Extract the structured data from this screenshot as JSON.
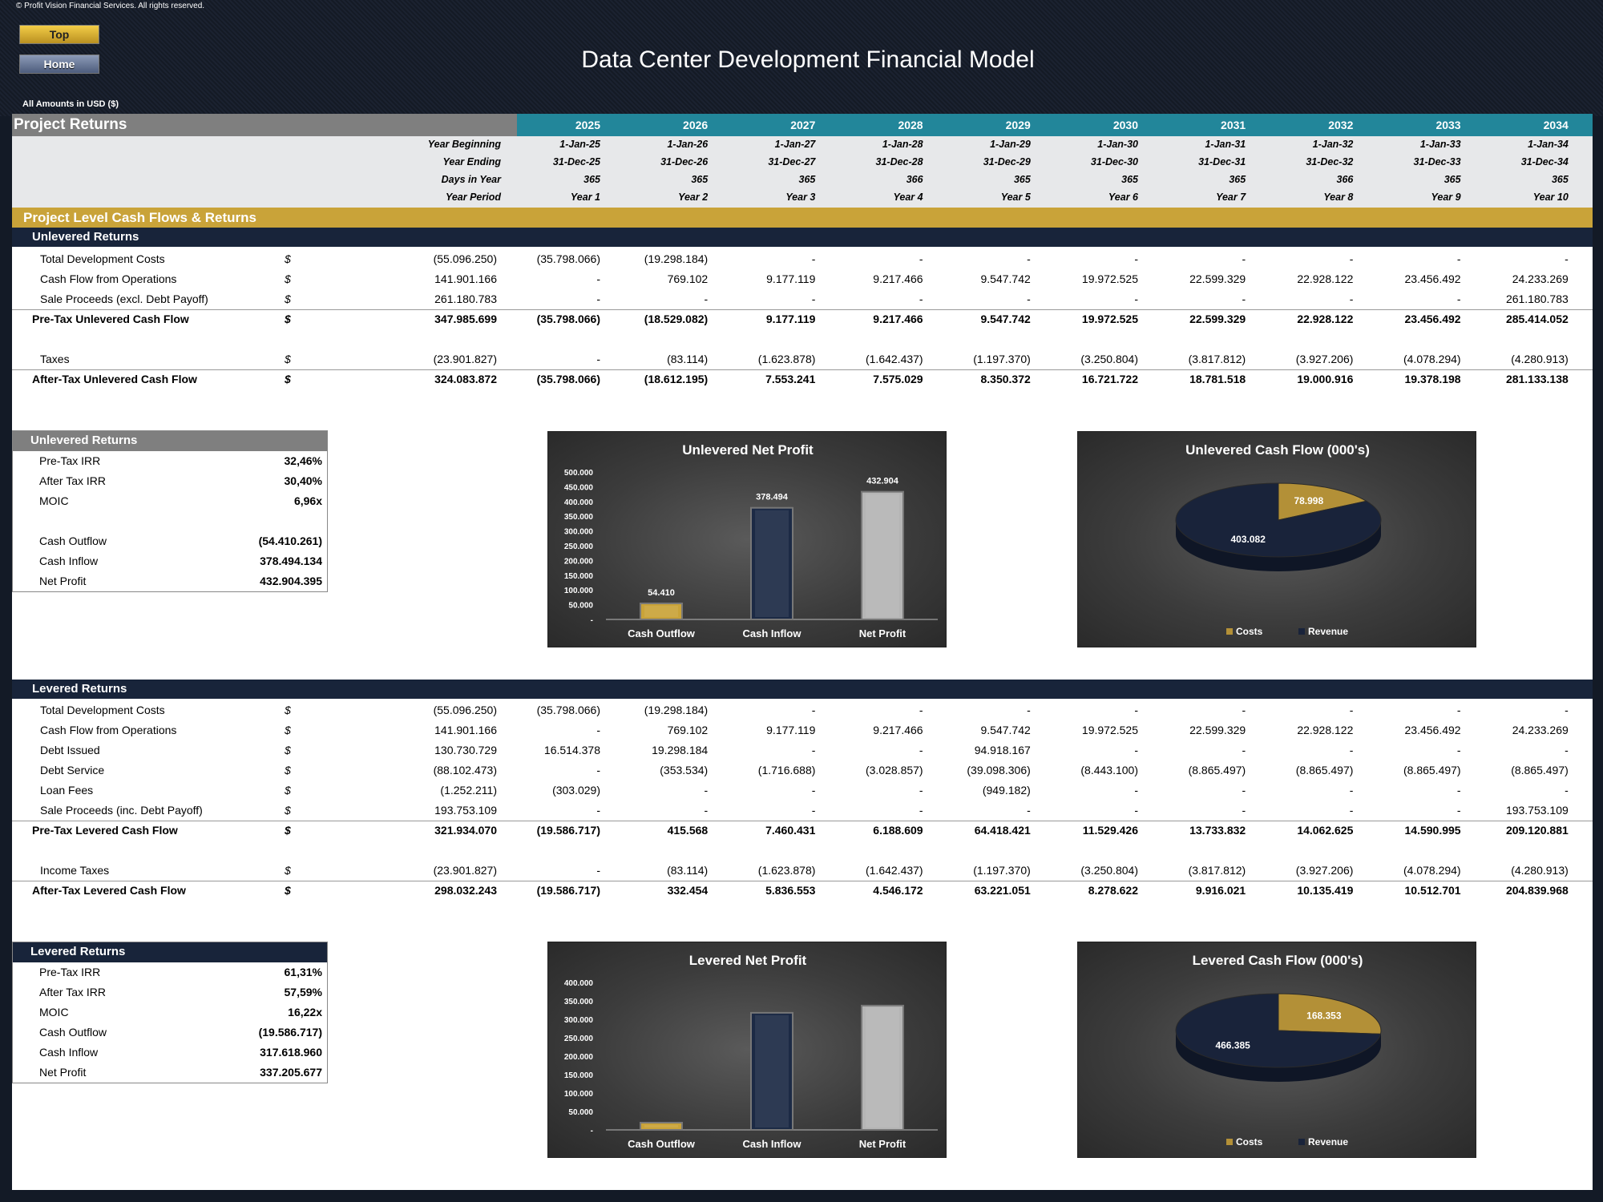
{
  "copyright": "© Profit Vision Financial Services. All rights reserved.",
  "nav": {
    "top_label": "Top",
    "home_label": "Home"
  },
  "title": "Data Center Development Financial Model",
  "amounts_note": "All Amounts in  USD ($)",
  "section_title": "Project Returns",
  "years": [
    "2025",
    "2026",
    "2027",
    "2028",
    "2029",
    "2030",
    "2031",
    "2032",
    "2033",
    "2034"
  ],
  "header_rows": [
    {
      "label": "Year Beginning",
      "values": [
        "1-Jan-25",
        "1-Jan-26",
        "1-Jan-27",
        "1-Jan-28",
        "1-Jan-29",
        "1-Jan-30",
        "1-Jan-31",
        "1-Jan-32",
        "1-Jan-33",
        "1-Jan-34"
      ]
    },
    {
      "label": "Year Ending",
      "values": [
        "31-Dec-25",
        "31-Dec-26",
        "31-Dec-27",
        "31-Dec-28",
        "31-Dec-29",
        "31-Dec-30",
        "31-Dec-31",
        "31-Dec-32",
        "31-Dec-33",
        "31-Dec-34"
      ]
    },
    {
      "label": "Days in Year",
      "values": [
        "365",
        "365",
        "365",
        "366",
        "365",
        "365",
        "365",
        "366",
        "365",
        "365"
      ]
    },
    {
      "label": "Year Period",
      "values": [
        "Year 1",
        "Year 2",
        "Year 3",
        "Year 4",
        "Year 5",
        "Year 6",
        "Year 7",
        "Year 8",
        "Year 9",
        "Year 10"
      ]
    }
  ],
  "cashflow_section": "Project Level Cash Flows & Returns",
  "unlevered": {
    "title": "Unlevered Returns",
    "rows": [
      {
        "label": "Total Development Costs",
        "unit": "$",
        "total": "(55.096.250)",
        "values": [
          "(35.798.066)",
          "(19.298.184)",
          "-",
          "-",
          "-",
          "-",
          "-",
          "-",
          "-",
          "-"
        ]
      },
      {
        "label": "Cash Flow from Operations",
        "unit": "$",
        "total": "141.901.166",
        "values": [
          "-",
          "769.102",
          "9.177.119",
          "9.217.466",
          "9.547.742",
          "19.972.525",
          "22.599.329",
          "22.928.122",
          "23.456.492",
          "24.233.269"
        ]
      },
      {
        "label": "Sale Proceeds (excl. Debt Payoff)",
        "unit": "$",
        "total": "261.180.783",
        "values": [
          "-",
          "-",
          "-",
          "-",
          "-",
          "-",
          "-",
          "-",
          "-",
          "261.180.783"
        ]
      },
      {
        "label": "Pre-Tax Unlevered Cash Flow",
        "unit": "$",
        "total": "347.985.699",
        "values": [
          "(35.798.066)",
          "(18.529.082)",
          "9.177.119",
          "9.217.466",
          "9.547.742",
          "19.972.525",
          "22.599.329",
          "22.928.122",
          "23.456.492",
          "285.414.052"
        ]
      },
      {
        "label": "Taxes",
        "unit": "$",
        "total": "(23.901.827)",
        "values": [
          "-",
          "(83.114)",
          "(1.623.878)",
          "(1.642.437)",
          "(1.197.370)",
          "(3.250.804)",
          "(3.817.812)",
          "(3.927.206)",
          "(4.078.294)",
          "(4.280.913)"
        ]
      },
      {
        "label": "After-Tax Unlevered Cash Flow",
        "unit": "$",
        "total": "324.083.872",
        "values": [
          "(35.798.066)",
          "(18.612.195)",
          "7.553.241",
          "7.575.029",
          "8.350.372",
          "16.721.722",
          "18.781.518",
          "19.000.916",
          "19.378.198",
          "281.133.138"
        ]
      }
    ],
    "summary_title": "Unlevered Returns",
    "summary": [
      {
        "label": "Pre-Tax IRR",
        "value": "32,46%"
      },
      {
        "label": "After Tax IRR",
        "value": "30,40%"
      },
      {
        "label": "MOIC",
        "value": "6,96x"
      },
      {
        "label": "Cash Outflow",
        "value": "(54.410.261)"
      },
      {
        "label": "Cash Inflow",
        "value": "378.494.134"
      },
      {
        "label": "Net Profit",
        "value": "432.904.395"
      }
    ]
  },
  "levered": {
    "title": "Levered Returns",
    "rows": [
      {
        "label": "Total Development Costs",
        "unit": "$",
        "total": "(55.096.250)",
        "values": [
          "(35.798.066)",
          "(19.298.184)",
          "-",
          "-",
          "-",
          "-",
          "-",
          "-",
          "-",
          "-"
        ]
      },
      {
        "label": "Cash Flow from Operations",
        "unit": "$",
        "total": "141.901.166",
        "values": [
          "-",
          "769.102",
          "9.177.119",
          "9.217.466",
          "9.547.742",
          "19.972.525",
          "22.599.329",
          "22.928.122",
          "23.456.492",
          "24.233.269"
        ]
      },
      {
        "label": "Debt Issued",
        "unit": "$",
        "total": "130.730.729",
        "values": [
          "16.514.378",
          "19.298.184",
          "-",
          "-",
          "94.918.167",
          "-",
          "-",
          "-",
          "-",
          "-"
        ]
      },
      {
        "label": "Debt Service",
        "unit": "$",
        "total": "(88.102.473)",
        "values": [
          "-",
          "(353.534)",
          "(1.716.688)",
          "(3.028.857)",
          "(39.098.306)",
          "(8.443.100)",
          "(8.865.497)",
          "(8.865.497)",
          "(8.865.497)",
          "(8.865.497)"
        ]
      },
      {
        "label": "Loan Fees",
        "unit": "$",
        "total": "(1.252.211)",
        "values": [
          "(303.029)",
          "-",
          "-",
          "-",
          "(949.182)",
          "-",
          "-",
          "-",
          "-",
          "-"
        ]
      },
      {
        "label": "Sale Proceeds (inc. Debt Payoff)",
        "unit": "$",
        "total": "193.753.109",
        "values": [
          "-",
          "-",
          "-",
          "-",
          "-",
          "-",
          "-",
          "-",
          "-",
          "193.753.109"
        ]
      },
      {
        "label": "Pre-Tax Levered Cash Flow",
        "unit": "$",
        "total": "321.934.070",
        "values": [
          "(19.586.717)",
          "415.568",
          "7.460.431",
          "6.188.609",
          "64.418.421",
          "11.529.426",
          "13.733.832",
          "14.062.625",
          "14.590.995",
          "209.120.881"
        ]
      },
      {
        "label": "Income Taxes",
        "unit": "$",
        "total": "(23.901.827)",
        "values": [
          "-",
          "(83.114)",
          "(1.623.878)",
          "(1.642.437)",
          "(1.197.370)",
          "(3.250.804)",
          "(3.817.812)",
          "(3.927.206)",
          "(4.078.294)",
          "(4.280.913)"
        ]
      },
      {
        "label": "After-Tax Levered Cash Flow",
        "unit": "$",
        "total": "298.032.243",
        "values": [
          "(19.586.717)",
          "332.454",
          "5.836.553",
          "4.546.172",
          "63.221.051",
          "8.278.622",
          "9.916.021",
          "10.135.419",
          "10.512.701",
          "204.839.968"
        ]
      }
    ],
    "summary_title": "Levered Returns",
    "summary": [
      {
        "label": "Pre-Tax IRR",
        "value": "61,31%"
      },
      {
        "label": "After Tax IRR",
        "value": "57,59%"
      },
      {
        "label": "MOIC",
        "value": "16,22x"
      },
      {
        "label": "Cash Outflow",
        "value": "(19.586.717)"
      },
      {
        "label": "Cash Inflow",
        "value": "317.618.960"
      },
      {
        "label": "Net Profit",
        "value": "337.205.677"
      }
    ]
  },
  "chart_data": [
    {
      "type": "bar",
      "title": "Unlevered Net Profit",
      "categories": [
        "Cash Outflow",
        "Cash Inflow",
        "Net Profit"
      ],
      "values": [
        54410,
        378494,
        432904
      ],
      "data_labels": [
        "54.410",
        "378.494",
        "432.904"
      ],
      "ylim": [
        0,
        500000
      ],
      "yticks": [
        "-",
        "50.000",
        "100.000",
        "150.000",
        "200.000",
        "250.000",
        "300.000",
        "350.000",
        "400.000",
        "450.000",
        "500.000"
      ],
      "colors": [
        "#c9a339",
        "#1c2a45",
        "#b5b5b5"
      ]
    },
    {
      "type": "pie",
      "title": "Unlevered Cash Flow (000's)",
      "categories": [
        "Costs",
        "Revenue"
      ],
      "values": [
        78998,
        403082
      ],
      "data_labels": [
        "78.998",
        "403.082"
      ],
      "colors": [
        "#b39037",
        "#19233a"
      ],
      "legend": "bottom"
    },
    {
      "type": "bar",
      "title": "Levered Net Profit",
      "categories": [
        "Cash Outflow",
        "Cash Inflow",
        "Net Profit"
      ],
      "values": [
        19587,
        317619,
        337206
      ],
      "ylim": [
        0,
        400000
      ],
      "yticks": [
        "-",
        "50.000",
        "100.000",
        "150.000",
        "200.000",
        "250.000",
        "300.000",
        "350.000",
        "400.000"
      ],
      "colors": [
        "#c9a339",
        "#1c2a45",
        "#b5b5b5"
      ]
    },
    {
      "type": "pie",
      "title": "Levered Cash Flow (000's)",
      "categories": [
        "Costs",
        "Revenue"
      ],
      "values": [
        168353,
        466385
      ],
      "data_labels": [
        "168.353",
        "466.385"
      ],
      "colors": [
        "#b39037",
        "#19233a"
      ],
      "legend": "bottom"
    }
  ]
}
